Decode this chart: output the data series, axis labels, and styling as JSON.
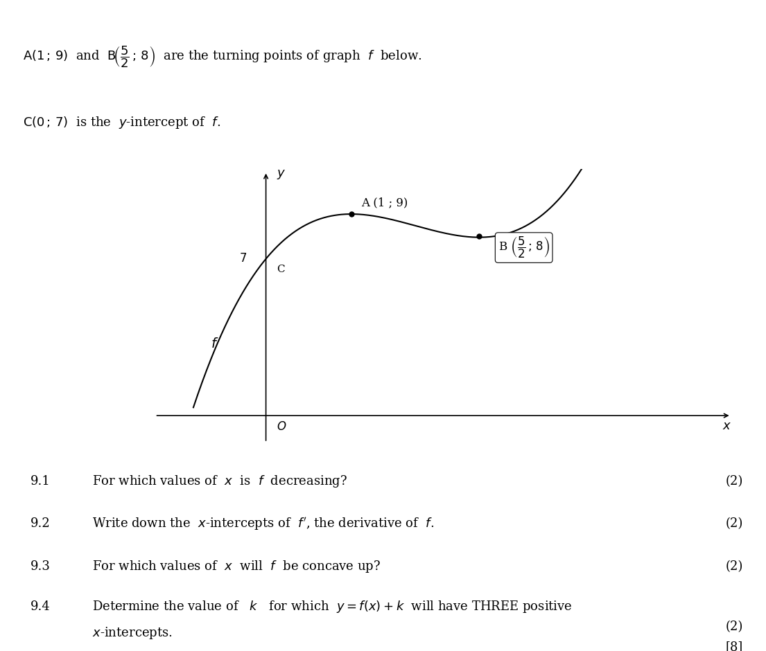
{
  "background_color": "#ffffff",
  "curve_color": "#000000",
  "point_A": [
    1,
    9
  ],
  "point_B": [
    2.5,
    8
  ],
  "point_C": [
    0,
    7
  ],
  "xmin": -1.5,
  "xmax": 5.5,
  "ymin": -1.5,
  "ymax": 11.0,
  "x_curve_start": -0.85,
  "x_curve_end": 4.3,
  "coeff_a": 1.8461538461538463,
  "coeff_c": 7.0,
  "header_line1_normal": "A(1 ; 9)  and  B",
  "header_line1_math": "\\left(\\dfrac{5}{2}\\,;\\,8\\right)",
  "header_line1_end": "  are the turning points of graph  ",
  "header_line2": "C(0 ; 7)  is the  ",
  "q91_num": "9.1",
  "q91_text": "For which values of  $x$  is  $f$  decreasing?",
  "q91_marks": "(2)",
  "q92_num": "9.2",
  "q92_text": "Write down the  $x$-intercepts of  $f'$, the derivative of  $f$.",
  "q92_marks": "(2)",
  "q93_num": "9.3",
  "q93_text": "For which values of  $x$  will  $f$  be concave up?",
  "q93_marks": "(2)",
  "q94_num": "9.4",
  "q94_text": "Determine the value of   $k$   for which  $y = f(x) + k$  will have THREE positive",
  "q94_text2": "$x$-intercepts.",
  "q94_marks": "(2)",
  "total_marks": "[8]",
  "fontsize_main": 13,
  "fontsize_axis": 12,
  "fontsize_label": 11
}
